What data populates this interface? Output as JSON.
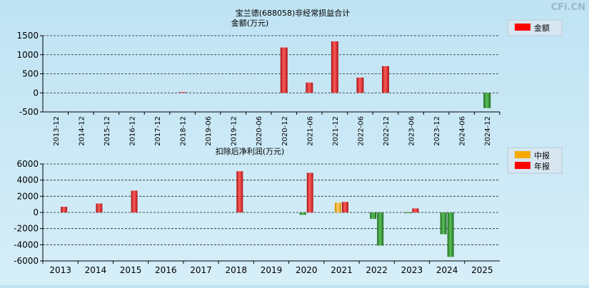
{
  "watermark": "CFi.CN",
  "chart_data": [
    {
      "type": "bar",
      "title": "宝兰德(688058)非经常损益合计",
      "ylabel": "金额(万元)",
      "ylim": [
        -500,
        1500
      ],
      "yticks": [
        "1500",
        "1000",
        "500",
        "0",
        "-500"
      ],
      "grid": true,
      "legend_position": "top-right",
      "categories": [
        "2013-12",
        "2014-12",
        "2015-12",
        "2016-12",
        "2017-12",
        "2018-12",
        "2019-06",
        "2019-12",
        "2020-06",
        "2020-12",
        "2021-06",
        "2021-12",
        "2022-06",
        "2022-12",
        "2023-06",
        "2023-12",
        "2024-06",
        "2024-12"
      ],
      "series": [
        {
          "name": "金额",
          "color": "#e02020",
          "negative_color": "#2e8b2e",
          "values": [
            0,
            0,
            0,
            0,
            0,
            20,
            0,
            0,
            0,
            1190,
            270,
            1350,
            400,
            700,
            0,
            0,
            0,
            -400
          ]
        }
      ]
    },
    {
      "type": "bar",
      "title": "扣除后净利润(万元)",
      "ylim": [
        -6000,
        6000
      ],
      "yticks": [
        "6000",
        "4000",
        "2000",
        "0",
        "-2000",
        "-4000",
        "-6000"
      ],
      "grid": true,
      "legend_position": "top-right",
      "categories": [
        "2013",
        "2014",
        "2015",
        "2016",
        "2017",
        "2018",
        "2019",
        "2020",
        "2021",
        "2022",
        "2023",
        "2024",
        "2025"
      ],
      "series": [
        {
          "name": "中报",
          "color": "#f5a800",
          "negative_color": "#2e8b2e",
          "values": [
            null,
            null,
            null,
            null,
            null,
            null,
            null,
            -300,
            1200,
            -800,
            -100,
            -2700,
            null
          ]
        },
        {
          "name": "年报",
          "color": "#e02020",
          "negative_color": "#2e8b2e",
          "values": [
            700,
            1100,
            2700,
            null,
            null,
            5100,
            null,
            4900,
            1300,
            -4100,
            500,
            -5500,
            null
          ]
        }
      ]
    }
  ]
}
